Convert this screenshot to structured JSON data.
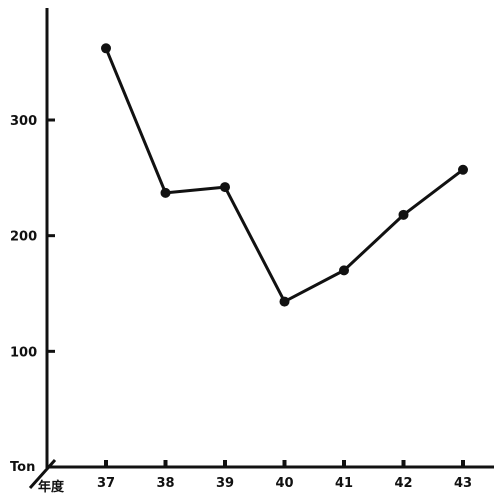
{
  "chart_data": {
    "type": "line",
    "x": [
      "37",
      "38",
      "39",
      "40",
      "41",
      "42",
      "43"
    ],
    "values": [
      362,
      237,
      242,
      143,
      170,
      218,
      257
    ],
    "ylim": [
      0,
      400
    ],
    "yticks": [
      100,
      200,
      300
    ],
    "ylabel": "Ton",
    "xlabel": "年度",
    "grid": false,
    "legend": "none",
    "colors": {
      "line": "#111111",
      "background": "#ffffff"
    }
  }
}
